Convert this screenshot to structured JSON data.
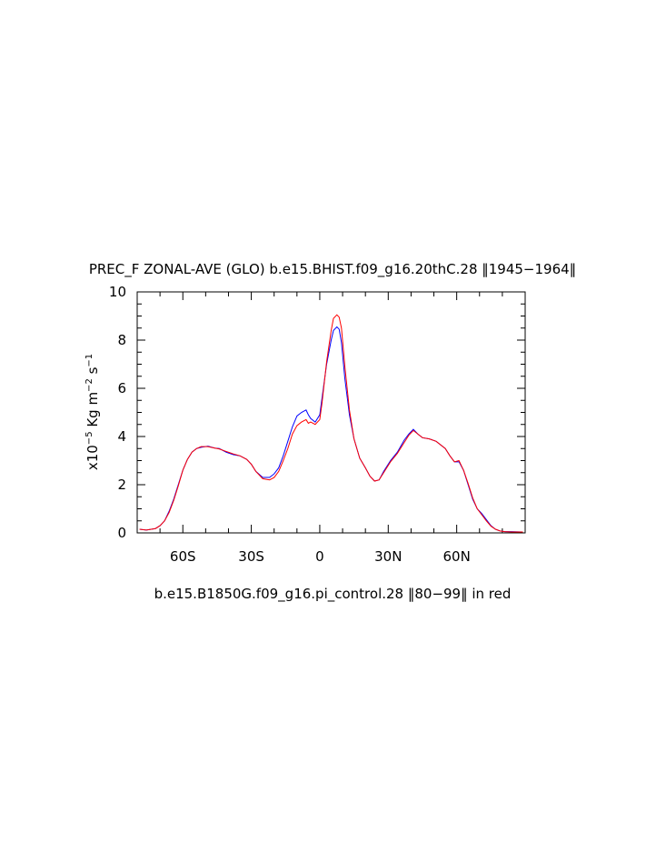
{
  "chart_data": {
    "type": "line",
    "title": "PREC_F ZONAL-AVE (GLO) b.e15.BHIST.f09_g16.20thC.28 ‖1945−1964‖",
    "subtitle": "b.e15.B1850G.f09_g16.pi_control.28 ‖80−99‖ in red",
    "ylabel": [
      "x10",
      "−5",
      " Kg m",
      "−2",
      " s",
      "−1"
    ],
    "x": [
      -79,
      -76,
      -72,
      -70,
      -68,
      -66,
      -64,
      -62,
      -60,
      -58,
      -56,
      -54,
      -52,
      -49,
      -46,
      -44,
      -41,
      -38,
      -35,
      -32,
      -30,
      -28,
      -25,
      -22,
      -20,
      -18,
      -16,
      -14,
      -12,
      -10,
      -8,
      -6,
      -5,
      -4,
      -2,
      0,
      1,
      3,
      5,
      6,
      7.5,
      8.5,
      9.5,
      11,
      13,
      15,
      17.5,
      20,
      22,
      24,
      26,
      28,
      31,
      34,
      37,
      39,
      41,
      43,
      45,
      48,
      51,
      55,
      57,
      59,
      61,
      63,
      65,
      67,
      69,
      71,
      73,
      75,
      77,
      79,
      81,
      84,
      89
    ],
    "series": [
      {
        "color": "#0000ff",
        "values": [
          0.15,
          0.12,
          0.18,
          0.3,
          0.5,
          0.9,
          1.4,
          2.0,
          2.6,
          3.05,
          3.35,
          3.5,
          3.55,
          3.6,
          3.52,
          3.5,
          3.35,
          3.25,
          3.2,
          3.05,
          2.85,
          2.55,
          2.3,
          2.3,
          2.45,
          2.7,
          3.2,
          3.8,
          4.4,
          4.85,
          5.0,
          5.1,
          4.9,
          4.75,
          4.6,
          4.9,
          5.6,
          7.0,
          8.0,
          8.4,
          8.55,
          8.45,
          7.9,
          6.4,
          4.9,
          3.9,
          3.1,
          2.7,
          2.35,
          2.15,
          2.2,
          2.55,
          3.0,
          3.35,
          3.85,
          4.1,
          4.3,
          4.1,
          3.95,
          3.9,
          3.8,
          3.5,
          3.2,
          2.95,
          2.95,
          2.6,
          2.0,
          1.4,
          1.0,
          0.8,
          0.55,
          0.3,
          0.15,
          0.08,
          0.05,
          0.05,
          0.04
        ]
      },
      {
        "color": "#ff0000",
        "values": [
          0.15,
          0.12,
          0.18,
          0.3,
          0.5,
          0.85,
          1.35,
          1.95,
          2.6,
          3.05,
          3.35,
          3.5,
          3.58,
          3.58,
          3.52,
          3.48,
          3.38,
          3.28,
          3.2,
          3.05,
          2.85,
          2.55,
          2.25,
          2.2,
          2.3,
          2.55,
          3.0,
          3.5,
          4.1,
          4.45,
          4.6,
          4.7,
          4.55,
          4.6,
          4.5,
          4.7,
          5.4,
          7.1,
          8.4,
          8.9,
          9.05,
          8.95,
          8.5,
          6.9,
          5.1,
          3.9,
          3.1,
          2.7,
          2.35,
          2.15,
          2.2,
          2.5,
          2.95,
          3.3,
          3.75,
          4.05,
          4.25,
          4.1,
          3.95,
          3.9,
          3.8,
          3.5,
          3.2,
          2.95,
          3.0,
          2.6,
          2.05,
          1.45,
          1.0,
          0.75,
          0.5,
          0.28,
          0.15,
          0.08,
          0.05,
          0.04,
          0.04
        ]
      }
    ],
    "xlim": [
      -80,
      90
    ],
    "xticks": [
      {
        "value": -60,
        "label": "60S"
      },
      {
        "value": -30,
        "label": "30S"
      },
      0,
      {
        "value": 30,
        "label": "30N"
      },
      {
        "value": 60,
        "label": "60N"
      }
    ],
    "xminorticks": [
      -70,
      -50,
      -40,
      -20,
      -10,
      10,
      20,
      40,
      50,
      70,
      80
    ],
    "ylim": [
      0,
      10
    ],
    "yticks": [
      0,
      2,
      4,
      6,
      8,
      10
    ],
    "yminorticks": [
      0.5,
      1,
      1.5,
      2.5,
      3,
      3.5,
      4.5,
      5,
      5.5,
      6.5,
      7,
      7.5,
      8.5,
      9,
      9.5
    ],
    "grid": false
  }
}
